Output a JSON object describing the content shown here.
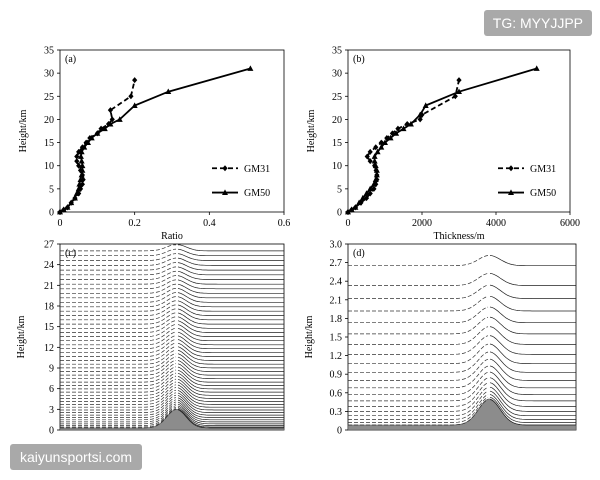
{
  "watermarks": {
    "top_right": "TG: MYYJJPP",
    "bottom_left": "kaiyunsportsi.com"
  },
  "chart_data": [
    {
      "panel": "(a)",
      "type": "line",
      "xlabel": "Ratio",
      "ylabel": "Height/km",
      "xlim": [
        0,
        0.6
      ],
      "ylim": [
        0,
        35
      ],
      "xticks": [
        "0",
        "0.2",
        "0.4",
        "0.6"
      ],
      "yticks": [
        "0",
        "5",
        "10",
        "15",
        "20",
        "25",
        "30",
        "35"
      ],
      "legend_position": "right",
      "series": [
        {
          "name": "GM31",
          "line_style": "dashed",
          "marker": "diamond",
          "points": [
            [
              0,
              0
            ],
            [
              0.01,
              0.5
            ],
            [
              0.02,
              1
            ],
            [
              0.03,
              2
            ],
            [
              0.04,
              3
            ],
            [
              0.05,
              4
            ],
            [
              0.055,
              5
            ],
            [
              0.06,
              6
            ],
            [
              0.062,
              7
            ],
            [
              0.06,
              8
            ],
            [
              0.055,
              9
            ],
            [
              0.05,
              10
            ],
            [
              0.045,
              11
            ],
            [
              0.045,
              12
            ],
            [
              0.05,
              13
            ],
            [
              0.06,
              14
            ],
            [
              0.07,
              15
            ],
            [
              0.08,
              16
            ],
            [
              0.1,
              17
            ],
            [
              0.11,
              18
            ],
            [
              0.13,
              19
            ],
            [
              0.14,
              20
            ],
            [
              0.135,
              22
            ],
            [
              0.19,
              25
            ],
            [
              0.2,
              28.5
            ]
          ]
        },
        {
          "name": "GM50",
          "line_style": "solid",
          "marker": "triangle",
          "points": [
            [
              0,
              0
            ],
            [
              0.01,
              0.5
            ],
            [
              0.02,
              1
            ],
            [
              0.03,
              2
            ],
            [
              0.04,
              3
            ],
            [
              0.045,
              4
            ],
            [
              0.05,
              5
            ],
            [
              0.052,
              6
            ],
            [
              0.055,
              7
            ],
            [
              0.058,
              8
            ],
            [
              0.06,
              9
            ],
            [
              0.06,
              10
            ],
            [
              0.058,
              11
            ],
            [
              0.056,
              12
            ],
            [
              0.058,
              13
            ],
            [
              0.065,
              14
            ],
            [
              0.075,
              15
            ],
            [
              0.085,
              16
            ],
            [
              0.1,
              17
            ],
            [
              0.12,
              18
            ],
            [
              0.135,
              19
            ],
            [
              0.16,
              20
            ],
            [
              0.2,
              23
            ],
            [
              0.29,
              26
            ],
            [
              0.51,
              31
            ]
          ]
        }
      ]
    },
    {
      "panel": "(b)",
      "type": "line",
      "xlabel": "Thickness/m",
      "ylabel": "Height/km",
      "xlim": [
        0,
        6000
      ],
      "ylim": [
        0,
        35
      ],
      "xticks": [
        "0",
        "2000",
        "4000",
        "6000"
      ],
      "yticks": [
        "0",
        "5",
        "10",
        "15",
        "20",
        "25",
        "30",
        "35"
      ],
      "legend_position": "right",
      "series": [
        {
          "name": "GM31",
          "line_style": "dashed",
          "marker": "diamond",
          "points": [
            [
              0,
              0
            ],
            [
              100,
              0.5
            ],
            [
              200,
              1
            ],
            [
              350,
              2
            ],
            [
              500,
              3
            ],
            [
              600,
              4
            ],
            [
              700,
              5
            ],
            [
              750,
              6
            ],
            [
              780,
              7
            ],
            [
              780,
              8
            ],
            [
              760,
              9
            ],
            [
              720,
              10
            ],
            [
              600,
              11
            ],
            [
              520,
              12
            ],
            [
              600,
              13
            ],
            [
              750,
              14
            ],
            [
              900,
              15
            ],
            [
              1050,
              16
            ],
            [
              1200,
              17
            ],
            [
              1350,
              18
            ],
            [
              1600,
              19
            ],
            [
              1950,
              20
            ],
            [
              2000,
              21
            ],
            [
              2900,
              25
            ],
            [
              3000,
              28.5
            ]
          ]
        },
        {
          "name": "GM50",
          "line_style": "solid",
          "marker": "triangle",
          "points": [
            [
              0,
              0
            ],
            [
              100,
              0.5
            ],
            [
              200,
              1
            ],
            [
              300,
              2
            ],
            [
              400,
              3
            ],
            [
              500,
              4
            ],
            [
              600,
              5
            ],
            [
              700,
              6
            ],
            [
              750,
              7
            ],
            [
              780,
              8
            ],
            [
              780,
              9
            ],
            [
              750,
              10
            ],
            [
              720,
              11
            ],
            [
              720,
              12
            ],
            [
              800,
              13
            ],
            [
              900,
              14
            ],
            [
              1000,
              15
            ],
            [
              1150,
              16
            ],
            [
              1300,
              17
            ],
            [
              1500,
              18
            ],
            [
              1700,
              19
            ],
            [
              1950,
              21
            ],
            [
              2100,
              23
            ],
            [
              3000,
              26
            ],
            [
              5100,
              31
            ]
          ]
        }
      ]
    },
    {
      "panel": "(c)",
      "type": "line",
      "xlabel": "",
      "ylabel": "Height/km",
      "ylim": [
        0,
        27
      ],
      "yticks": [
        "0",
        "3",
        "6",
        "9",
        "12",
        "15",
        "18",
        "21",
        "24",
        "27"
      ],
      "terrain": {
        "mountain_peak_km": 3,
        "mountain_center_fraction": 0.52,
        "base_km": 0.3
      },
      "level_lines": {
        "count": 50,
        "min_km": 0.3,
        "max_km": 26,
        "left_style": "dashed",
        "right_style": "solid",
        "right_offset_top_km": -0.3
      }
    },
    {
      "panel": "(d)",
      "type": "line",
      "xlabel": "",
      "ylabel": "Height/km",
      "ylim": [
        0,
        3.0
      ],
      "yticks": [
        "0",
        "0.3",
        "0.6",
        "0.9",
        "1.2",
        "1.5",
        "1.8",
        "2.1",
        "2.4",
        "2.7",
        "3.0"
      ],
      "terrain": {
        "mountain_peak_km": 0.5,
        "mountain_center_fraction": 0.62,
        "base_km": 0.08
      },
      "level_lines": {
        "heights_km": [
          0.08,
          0.12,
          0.17,
          0.23,
          0.3,
          0.38,
          0.47,
          0.57,
          0.68,
          0.8,
          0.93,
          1.07,
          1.22,
          1.38,
          1.55,
          1.73,
          1.92,
          2.12,
          2.33,
          2.65
        ],
        "left_style": "dashed",
        "right_style": "solid"
      }
    }
  ]
}
